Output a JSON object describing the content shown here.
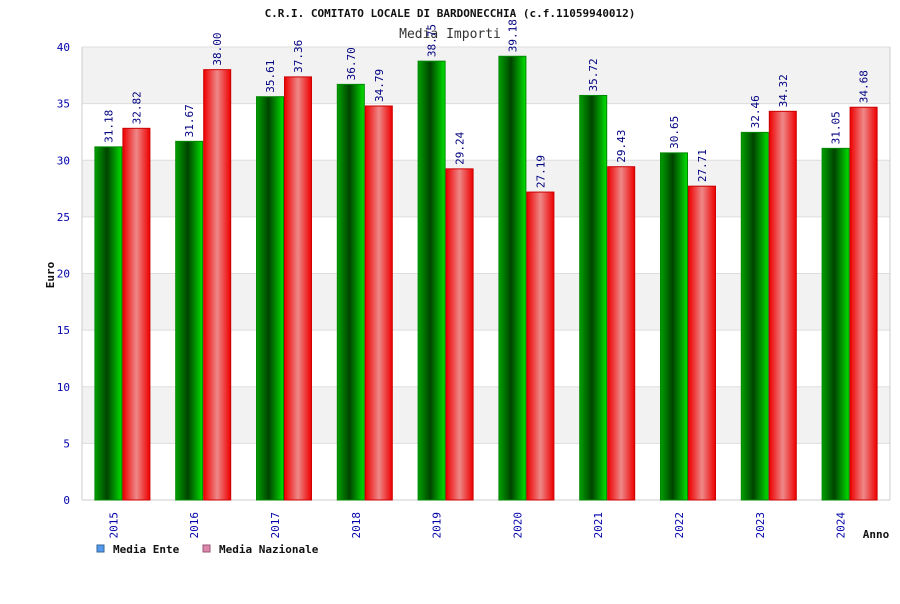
{
  "chart_data": {
    "type": "bar",
    "title": "C.R.I. COMITATO LOCALE DI BARDONECCHIA (c.f.11059940012)",
    "subtitle": "Media Importi",
    "xlabel": "Anno",
    "ylabel": "Euro",
    "ylim": [
      0,
      40
    ],
    "yticks": [
      "0",
      "5",
      "10",
      "15",
      "20",
      "25",
      "30",
      "35",
      "40"
    ],
    "grid": true,
    "legend_position": "bottom-left",
    "categories": [
      "2015",
      "2016",
      "2017",
      "2018",
      "2019",
      "2020",
      "2021",
      "2022",
      "2023",
      "2024"
    ],
    "series": [
      {
        "name": "Media Ente",
        "values": [
          31.18,
          31.67,
          35.61,
          36.7,
          38.75,
          39.18,
          35.72,
          30.65,
          32.46,
          31.05
        ],
        "labels": [
          "31.18",
          "31.67",
          "35.61",
          "36.70",
          "38.75",
          "39.18",
          "35.72",
          "30.65",
          "32.46",
          "31.05"
        ],
        "color": "#00b000",
        "legend_color": "#5599ee"
      },
      {
        "name": "Media Nazionale",
        "values": [
          32.82,
          38.0,
          37.36,
          34.79,
          29.24,
          27.19,
          29.43,
          27.71,
          34.32,
          34.68
        ],
        "labels": [
          "32.82",
          "38.00",
          "37.36",
          "34.79",
          "29.24",
          "27.19",
          "29.43",
          "27.71",
          "34.32",
          "34.68"
        ],
        "color": "#ee0000",
        "legend_color": "#dd88aa"
      }
    ]
  }
}
